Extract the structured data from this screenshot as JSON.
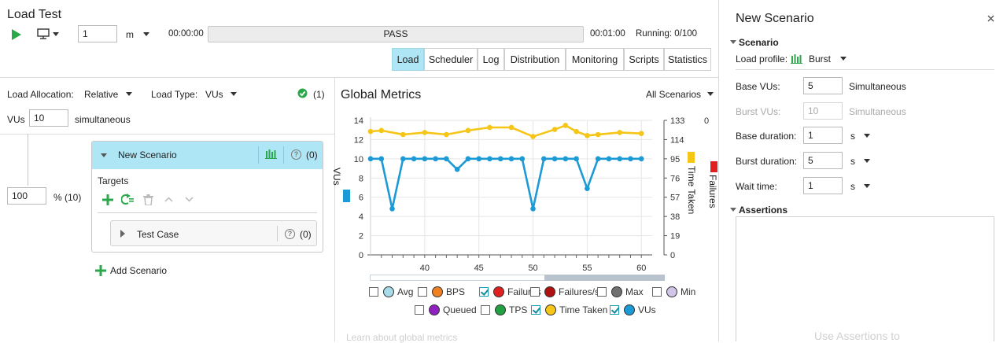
{
  "header": {
    "title": "Load Test",
    "duration_value": "1",
    "duration_unit": "m",
    "time_start": "00:00:00",
    "status": "PASS",
    "time_end": "00:01:00",
    "running": "Running: 0/100"
  },
  "tabs": [
    "Load",
    "Scheduler",
    "Log",
    "Distribution",
    "Monitoring",
    "Scripts",
    "Statistics"
  ],
  "left": {
    "load_allocation_label": "Load Allocation:",
    "load_allocation_value": "Relative",
    "load_type_label": "Load Type:",
    "load_type_value": "VUs",
    "valid_count": "(1)",
    "vus_label": "VUs",
    "vus_value": "10",
    "vus_suffix": "simultaneous",
    "percent_value": "100",
    "percent_suffix": "% (10)",
    "scenario_name": "New Scenario",
    "scenario_count": "(0)",
    "targets_label": "Targets",
    "test_case_name": "Test Case",
    "test_case_count": "(0)",
    "add_scenario": "Add Scenario"
  },
  "metrics": {
    "title": "Global Metrics",
    "filter": "All Scenarios",
    "left_axis_label": "VUs",
    "right_axis_label": "Time Taken",
    "far_right_axis_label": "Failures",
    "left_ticks": [
      "14",
      "12",
      "10",
      "8",
      "6",
      "4",
      "2",
      "0"
    ],
    "right_ticks": [
      "133",
      "114",
      "95",
      "76",
      "57",
      "38",
      "19",
      "0"
    ],
    "far_right_ticks": [
      "0"
    ],
    "x_ticks": [
      "40",
      "45",
      "50",
      "55",
      "60"
    ],
    "legend": [
      {
        "label": "Avg",
        "color": "#a8dbe8",
        "checked": false
      },
      {
        "label": "BPS",
        "color": "#f08020",
        "checked": false
      },
      {
        "label": "Failures",
        "color": "#e02020",
        "checked": true
      },
      {
        "label": "Failures/s",
        "color": "#b01010",
        "checked": false
      },
      {
        "label": "Max",
        "color": "#707070",
        "checked": false
      },
      {
        "label": "Min",
        "color": "#d0c4e8",
        "checked": false
      },
      {
        "label": "Queued",
        "color": "#9020c0",
        "checked": false
      },
      {
        "label": "TPS",
        "color": "#20a040",
        "checked": false
      },
      {
        "label": "Time Taken",
        "color": "#f5c518",
        "checked": true
      },
      {
        "label": "VUs",
        "color": "#1b9ad6",
        "checked": true
      }
    ],
    "footer_link": "Learn about global metrics"
  },
  "chart_data": {
    "type": "line",
    "title": "Global Metrics",
    "xlabel": "",
    "ylabel": "VUs",
    "y2label": "Time Taken",
    "xlim": [
      35,
      61
    ],
    "ylim": [
      0,
      14
    ],
    "y2lim": [
      0,
      133
    ],
    "x": [
      35,
      36,
      38,
      40,
      42,
      44,
      46,
      48,
      50,
      52,
      53,
      54,
      55,
      56,
      58,
      60
    ],
    "series": [
      {
        "name": "VUs",
        "axis": "left",
        "color": "#1b9ad6",
        "x": [
          35,
          36,
          37,
          38,
          39,
          40,
          41,
          42,
          43,
          44,
          45,
          46,
          47,
          48,
          49,
          50,
          51,
          52,
          53,
          54,
          55,
          56,
          57,
          58,
          59,
          60
        ],
        "values": [
          10,
          10,
          4.8,
          10,
          10,
          10,
          10,
          10,
          8.9,
          10,
          10,
          10,
          10,
          10,
          10,
          4.8,
          10,
          10,
          10,
          10,
          6.9,
          10,
          10,
          10,
          10,
          10
        ]
      },
      {
        "name": "Time Taken",
        "axis": "right",
        "color": "#f5c518",
        "x": [
          35,
          36,
          38,
          40,
          42,
          44,
          46,
          48,
          50,
          52,
          53,
          54,
          55,
          56,
          58,
          60
        ],
        "values": [
          122,
          123,
          119,
          121,
          119,
          123,
          126,
          126,
          117,
          124,
          128,
          122,
          118,
          119,
          121,
          120
        ]
      }
    ]
  },
  "panel": {
    "title": "New Scenario",
    "section_scenario": "Scenario",
    "load_profile_label": "Load profile:",
    "load_profile_value": "Burst",
    "base_vus_label": "Base VUs:",
    "base_vus_value": "5",
    "base_vus_unit": "Simultaneous",
    "burst_vus_label": "Burst VUs:",
    "burst_vus_value": "10",
    "burst_vus_unit": "Simultaneous",
    "base_duration_label": "Base duration:",
    "base_duration_value": "1",
    "base_duration_unit": "s",
    "burst_duration_label": "Burst duration:",
    "burst_duration_value": "5",
    "burst_duration_unit": "s",
    "wait_time_label": "Wait time:",
    "wait_time_value": "1",
    "wait_time_unit": "s",
    "section_assertions": "Assertions",
    "assertions_hint": "Use Assertions to"
  }
}
